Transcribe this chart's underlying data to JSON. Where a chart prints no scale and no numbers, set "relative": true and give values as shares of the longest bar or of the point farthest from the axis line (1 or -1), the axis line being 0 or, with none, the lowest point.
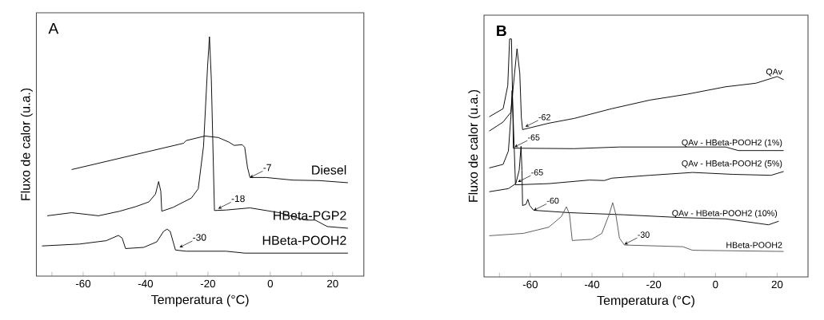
{
  "chart_data": [
    {
      "type": "line",
      "relative": true,
      "xlabel": "Temperatura (°C)",
      "ylabel": "Fluxo de calor (u.a.)",
      "xlim": [
        -75,
        30
      ],
      "xticks": [
        {
          "value": -70,
          "label": null
        },
        -60,
        {
          "value": -50,
          "label": null
        },
        -40,
        {
          "value": -30,
          "label": null
        },
        -20,
        {
          "value": -10,
          "label": null
        },
        0,
        {
          "value": 10,
          "label": null
        },
        20
      ],
      "series": [
        {
          "name": "Diesel",
          "color": "#000000",
          "x": [
            -63.7,
            -27.8,
            -27,
            -21,
            -16.7,
            -13.3,
            -11.6,
            -9,
            -8.2,
            -7.3,
            -6.5,
            -1.4,
            7.2,
            15.7,
            24.9
          ],
          "values": [
            0.445,
            0.555,
            0.566,
            0.585,
            0.579,
            0.56,
            0.546,
            0.549,
            0.538,
            0.454,
            0.412,
            0.412,
            0.401,
            0.399,
            0.39
          ]
        },
        {
          "name": "HBeta-PGP2",
          "color": "#000000",
          "x": [
            -71.5,
            -63.7,
            -55.1,
            -48.3,
            -43.2,
            -38.9,
            -36.8,
            -35.8,
            -35.1,
            -34.8,
            -31.2,
            -25.3,
            -23.1,
            -21.4,
            -20.1,
            -19.5,
            -18.9,
            -17.9,
            -14.2,
            -6.5,
            2.9,
            11.4,
            14.4,
            18.3,
            24.9
          ],
          "values": [
            0.252,
            0.265,
            0.252,
            0.271,
            0.29,
            0.31,
            0.343,
            0.395,
            0.354,
            0.271,
            0.287,
            0.326,
            0.365,
            0.543,
            0.877,
            1.0,
            0.822,
            0.274,
            0.276,
            0.285,
            0.265,
            0.234,
            0.234,
            0.207,
            0.2
          ]
        },
        {
          "name": "HBeta-POOH2",
          "color": "#000000",
          "x": [
            -73.2,
            -61.1,
            -52.6,
            -48.7,
            -47.5,
            -46.4,
            -40.6,
            -36.4,
            -34.2,
            -33.1,
            -32.1,
            -30.4,
            -27,
            -14.2,
            -8.2,
            24.9
          ],
          "values": [
            0.126,
            0.134,
            0.148,
            0.17,
            0.159,
            0.115,
            0.12,
            0.143,
            0.187,
            0.196,
            0.187,
            0.109,
            0.104,
            0.104,
            0.096,
            0.096
          ]
        }
      ],
      "annotations": [
        "A",
        {
          "text": "-7",
          "x": -6.5,
          "y": 0.412
        },
        {
          "text": "-18",
          "x": -16.7,
          "y": 0.282
        },
        {
          "text": "-30",
          "x": -29.1,
          "y": 0.12
        }
      ]
    },
    {
      "type": "line",
      "relative": true,
      "xlabel": "Temperatura (°C)",
      "ylabel": "Fluxo de calor (u.a.)",
      "xlim": [
        -75,
        30
      ],
      "xticks": [
        {
          "value": -70,
          "label": null
        },
        -60,
        {
          "value": -50,
          "label": null
        },
        -40,
        {
          "value": -30,
          "label": null
        },
        -20,
        {
          "value": -10,
          "label": null
        },
        0,
        {
          "value": 10,
          "label": null
        },
        20
      ],
      "series": [
        {
          "name": "QAv",
          "color": "#000000",
          "x": [
            -73.3,
            -68.8,
            -66.3,
            -65.1,
            -64.3,
            -63.4,
            -62.9,
            -62.5,
            -54,
            -45.8,
            -33.6,
            -21.3,
            -9.1,
            3.3,
            13.1,
            20,
            22.1
          ],
          "values": [
            0.613,
            0.651,
            0.692,
            0.855,
            0.959,
            0.855,
            0.671,
            0.619,
            0.646,
            0.666,
            0.707,
            0.743,
            0.768,
            0.799,
            0.814,
            0.842,
            0.829
          ]
        },
        {
          "name": "QAv - HBeta-POOH2 (1%)",
          "color": "#000000",
          "x": [
            -73.3,
            -68.8,
            -67.3,
            -66.7,
            -66.1,
            -65.6,
            -65.5,
            -45.8,
            -31.1,
            3.3,
            7.4,
            22.1
          ],
          "values": [
            0.673,
            0.707,
            0.804,
            1.0,
            1.0,
            0.651,
            0.541,
            0.539,
            0.546,
            0.546,
            0.531,
            0.531
          ]
        },
        {
          "name": "QAv - HBeta-POOH2 (5%)",
          "color": "#000000",
          "x": [
            -73.3,
            -68.8,
            -67.1,
            -66.3,
            -65.9,
            -65.5,
            -64.8,
            -54,
            -40.9,
            -36,
            -33.6,
            -21.3,
            -7.4,
            5.7,
            18,
            22.1
          ],
          "values": [
            0.458,
            0.473,
            0.529,
            0.671,
            0.783,
            0.651,
            0.387,
            0.392,
            0.407,
            0.405,
            0.415,
            0.427,
            0.439,
            0.431,
            0.427,
            0.443
          ]
        },
        {
          "name": "QAv - HBeta-POOH2 (10%)",
          "color": "#000000",
          "x": [
            -73.3,
            -67.1,
            -64.7,
            -63.6,
            -63,
            -62.7,
            -62.5,
            -61.4,
            -60.8,
            -60.2,
            -58.9,
            -47.5,
            -29.5,
            -10.6,
            3.3,
            17.2,
            20.5
          ],
          "values": [
            0.358,
            0.371,
            0.392,
            0.448,
            0.549,
            0.448,
            0.3,
            0.305,
            0.326,
            0.3,
            0.28,
            0.27,
            0.261,
            0.249,
            0.244,
            0.219,
            0.234
          ]
        },
        {
          "name": "HBeta-POOH2",
          "color": "#555555",
          "x": [
            -73.3,
            -62.2,
            -54,
            -49.9,
            -48.3,
            -47.3,
            -46.4,
            -40.1,
            -36.8,
            -34.4,
            -33.3,
            -32.3,
            -31.1,
            -29.5,
            -10.6,
            -7.4,
            22.1
          ],
          "values": [
            0.173,
            0.183,
            0.209,
            0.254,
            0.295,
            0.264,
            0.153,
            0.158,
            0.183,
            0.264,
            0.312,
            0.264,
            0.163,
            0.134,
            0.127,
            0.112,
            0.107
          ]
        }
      ],
      "annotations": [
        "B",
        {
          "text": "-62",
          "x": -61.6,
          "y": 0.631
        },
        {
          "text": "-65",
          "x": -65.1,
          "y": 0.546
        },
        {
          "text": "-65",
          "x": -64,
          "y": 0.399
        },
        {
          "text": "-60",
          "x": -58.9,
          "y": 0.28
        },
        {
          "text": "-30",
          "x": -29.5,
          "y": 0.137
        }
      ]
    }
  ]
}
